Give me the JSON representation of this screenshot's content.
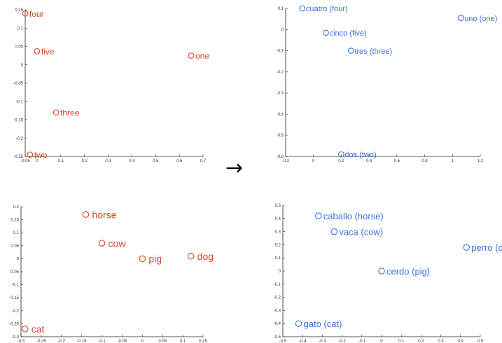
{
  "arrow": "→",
  "chart_data": [
    {
      "type": "scatter",
      "color": "#d9472b",
      "xlim": [
        -0.05,
        0.7
      ],
      "ylim": [
        -0.25,
        0.15
      ],
      "xticks": [
        "-0.05",
        "0",
        "0.1",
        "0.2",
        "0.3",
        "0.4",
        "0.5",
        "0.6",
        "0.7"
      ],
      "xtick_values": [
        -0.05,
        0,
        0.1,
        0.2,
        0.3,
        0.4,
        0.5,
        0.6,
        0.7
      ],
      "yticks": [
        "0.15",
        "0.1",
        "0.05",
        "0",
        "-0.05",
        "-0.1",
        "-0.15",
        "-0.2",
        "-0.25"
      ],
      "ytick_values": [
        0.15,
        0.1,
        0.05,
        0,
        -0.05,
        -0.1,
        -0.15,
        -0.2,
        -0.25
      ],
      "points": [
        {
          "label": "four",
          "x": -0.05,
          "y": 0.14
        },
        {
          "label": "five",
          "x": 0.0,
          "y": 0.037
        },
        {
          "label": "one",
          "x": 0.65,
          "y": 0.025
        },
        {
          "label": "three",
          "x": 0.08,
          "y": -0.13
        },
        {
          "label": "two",
          "x": -0.03,
          "y": -0.245
        }
      ]
    },
    {
      "type": "scatter",
      "color": "#3a73d9",
      "xlim": [
        -0.2,
        1.2
      ],
      "ylim": [
        -0.6,
        0.1
      ],
      "xticks": [
        "-0.2",
        "0",
        "0.2",
        "0.4",
        "0.6",
        "0.8",
        "1",
        "1.2"
      ],
      "xtick_values": [
        -0.2,
        0,
        0.2,
        0.4,
        0.6,
        0.8,
        1.0,
        1.2
      ],
      "yticks": [
        "0.1",
        "0",
        "-0.1",
        "-0.2",
        "-0.3",
        "-0.4",
        "-0.5",
        "-0.6"
      ],
      "ytick_values": [
        0.1,
        0,
        -0.1,
        -0.2,
        -0.3,
        -0.4,
        -0.5,
        -0.6
      ],
      "points": [
        {
          "label": "cuatro (four)",
          "x": -0.08,
          "y": 0.1
        },
        {
          "label": "uno (one)",
          "x": 1.06,
          "y": 0.055
        },
        {
          "label": "cinco (five)",
          "x": 0.09,
          "y": -0.015
        },
        {
          "label": "tres (three)",
          "x": 0.27,
          "y": -0.1
        },
        {
          "label": "dos (two)",
          "x": 0.2,
          "y": -0.59
        }
      ]
    },
    {
      "type": "scatter",
      "color": "#d9472b",
      "xlim": [
        -0.3,
        0.15
      ],
      "ylim": [
        -0.3,
        0.2
      ],
      "xticks": [
        "-0.3",
        "-0.25",
        "-0.2",
        "-0.15",
        "-0.1",
        "-0.05",
        "0",
        "0.05",
        "0.1",
        "0.15"
      ],
      "xtick_values": [
        -0.3,
        -0.25,
        -0.2,
        -0.15,
        -0.1,
        -0.05,
        0,
        0.05,
        0.1,
        0.15
      ],
      "yticks": [
        "0.2",
        "0.15",
        "0.1",
        "0.05",
        "0",
        "-0.05",
        "-0.1",
        "-0.15",
        "-0.2",
        "-0.25",
        "-0.3"
      ],
      "ytick_values": [
        0.2,
        0.15,
        0.1,
        0.05,
        0,
        -0.05,
        -0.1,
        -0.15,
        -0.2,
        -0.25,
        -0.3
      ],
      "points": [
        {
          "label": "horse",
          "x": -0.14,
          "y": 0.17
        },
        {
          "label": "cow",
          "x": -0.1,
          "y": 0.06
        },
        {
          "label": "pig",
          "x": 0.0,
          "y": 0.0
        },
        {
          "label": "dog",
          "x": 0.12,
          "y": 0.01
        },
        {
          "label": "cat",
          "x": -0.29,
          "y": -0.27
        }
      ]
    },
    {
      "type": "scatter",
      "color": "#3a73d9",
      "xlim": [
        -0.5,
        0.5
      ],
      "ylim": [
        -0.5,
        0.5
      ],
      "xticks": [
        "-0.5",
        "-0.4",
        "-0.3",
        "-0.2",
        "-0.1",
        "0",
        "0.1",
        "0.2",
        "0.3",
        "0.4",
        "0.5"
      ],
      "xtick_values": [
        -0.5,
        -0.4,
        -0.3,
        -0.2,
        -0.1,
        0,
        0.1,
        0.2,
        0.3,
        0.4,
        0.5
      ],
      "yticks": [
        "0.5",
        "0.4",
        "0.3",
        "0.2",
        "0.1",
        "0",
        "-0.1",
        "-0.2",
        "-0.3",
        "-0.4",
        "-0.5"
      ],
      "ytick_values": [
        0.5,
        0.4,
        0.3,
        0.2,
        0.1,
        0,
        -0.1,
        -0.2,
        -0.3,
        -0.4,
        -0.5
      ],
      "points": [
        {
          "label": "caballo (horse)",
          "x": -0.32,
          "y": 0.42
        },
        {
          "label": "vaca (cow)",
          "x": -0.24,
          "y": 0.3
        },
        {
          "label": "perro (dog)",
          "x": 0.43,
          "y": 0.18
        },
        {
          "label": "cerdo (pig)",
          "x": 0.0,
          "y": 0.0
        },
        {
          "label": "gato (cat)",
          "x": -0.42,
          "y": -0.4
        }
      ]
    }
  ]
}
